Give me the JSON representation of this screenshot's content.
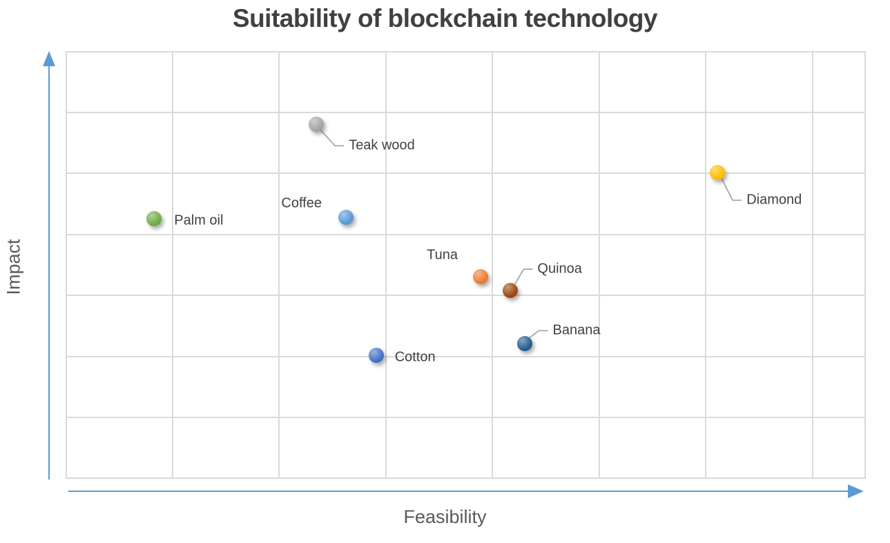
{
  "chart_data": {
    "type": "scatter",
    "title": "Suitability of blockchain technology",
    "xlabel": "Feasibility",
    "ylabel": "Impact",
    "xlim": [
      0,
      7.5
    ],
    "ylim": [
      0,
      7
    ],
    "x_major_unit": 1,
    "y_major_unit": 1,
    "grid": true,
    "tick_labels_shown": false,
    "legend": "none",
    "series": [
      {
        "name": "Palm oil",
        "x": 0.83,
        "y": 4.26,
        "color": "#70AD47",
        "label_offset": [
          29,
          3
        ],
        "leader": false
      },
      {
        "name": "Teak wood",
        "x": 2.35,
        "y": 5.8,
        "color": "#A5A5A5",
        "label_offset": [
          47,
          31
        ],
        "leader": true
      },
      {
        "name": "Coffee",
        "x": 2.63,
        "y": 4.28,
        "color": "#5B9BD5",
        "label_offset": [
          -94,
          -20
        ],
        "leader": false
      },
      {
        "name": "Cotton",
        "x": 2.91,
        "y": 2.02,
        "color": "#4472C4",
        "label_offset": [
          27,
          3
        ],
        "leader": false
      },
      {
        "name": "Tuna",
        "x": 3.89,
        "y": 3.31,
        "color": "#ED7D31",
        "label_offset": [
          -78,
          -31
        ],
        "leader": false
      },
      {
        "name": "Quinoa",
        "x": 4.17,
        "y": 3.08,
        "color": "#9E480E",
        "label_offset": [
          39,
          -31
        ],
        "leader": true
      },
      {
        "name": "Banana",
        "x": 4.3,
        "y": 2.21,
        "color": "#255E91",
        "label_offset": [
          41,
          -19
        ],
        "leader": true
      },
      {
        "name": "Diamond",
        "x": 6.11,
        "y": 5.01,
        "color": "#FFC000",
        "label_offset": [
          42,
          40
        ],
        "leader": true
      }
    ]
  },
  "style": {
    "title_color": "#404040",
    "axis_title_color": "#595959",
    "point_label_color": "#404040",
    "gridline_color": "#D9D9D9",
    "axis_arrow_color": "#5B9BD5",
    "leader_line_color": "#A6A6A6",
    "background_color": "#FFFFFF"
  }
}
